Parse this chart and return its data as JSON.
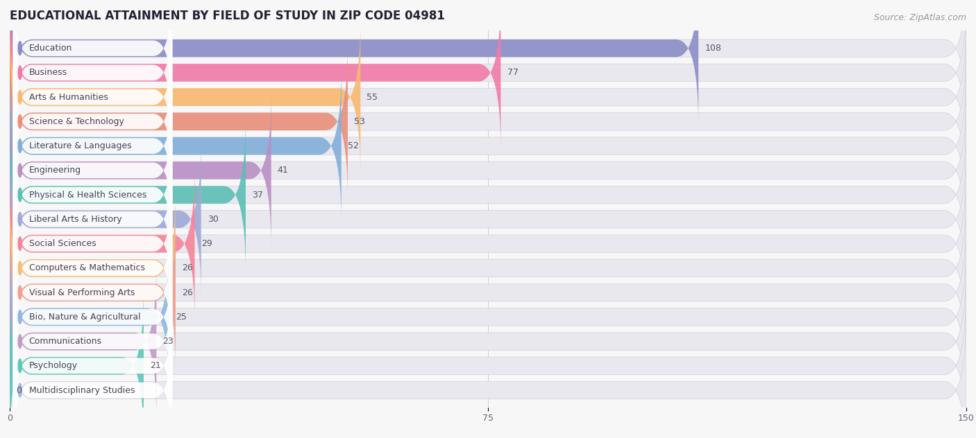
{
  "title": "EDUCATIONAL ATTAINMENT BY FIELD OF STUDY IN ZIP CODE 04981",
  "source": "Source: ZipAtlas.com",
  "categories": [
    "Education",
    "Business",
    "Arts & Humanities",
    "Science & Technology",
    "Literature & Languages",
    "Engineering",
    "Physical & Health Sciences",
    "Liberal Arts & History",
    "Social Sciences",
    "Computers & Mathematics",
    "Visual & Performing Arts",
    "Bio, Nature & Agricultural",
    "Communications",
    "Psychology",
    "Multidisciplinary Studies"
  ],
  "values": [
    108,
    77,
    55,
    53,
    52,
    41,
    37,
    30,
    29,
    26,
    26,
    25,
    23,
    21,
    0
  ],
  "colors": [
    "#8b8dc8",
    "#f27aaa",
    "#f9b96e",
    "#e8907a",
    "#82afd8",
    "#b98fc4",
    "#5bbfb5",
    "#9fa8d8",
    "#f5849a",
    "#f5bf7a",
    "#f0a090",
    "#90b8e0",
    "#c09ac8",
    "#5cc8b8",
    "#a8b8e0"
  ],
  "xlim": [
    0,
    150
  ],
  "xticks": [
    0,
    75,
    150
  ],
  "background_color": "#f7f7f8",
  "bar_bg_color": "#e8e8ee",
  "title_fontsize": 12,
  "source_fontsize": 9,
  "label_fontsize": 9,
  "value_fontsize": 9
}
